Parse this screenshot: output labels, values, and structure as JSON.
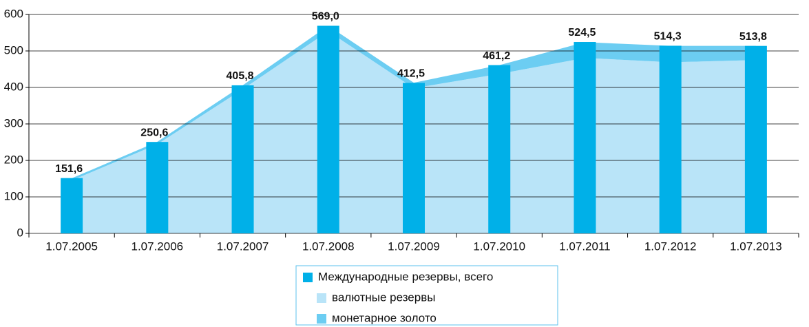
{
  "chart_data": {
    "type": "bar",
    "categories": [
      "1.07.2005",
      "1.07.2006",
      "1.07.2007",
      "1.07.2008",
      "1.07.2009",
      "1.07.2010",
      "1.07.2011",
      "1.07.2012",
      "1.07.2013"
    ],
    "series": [
      {
        "name": "Международные резервы, всего",
        "type": "bar",
        "color": "#00b0e8",
        "values": [
          151.6,
          250.6,
          405.8,
          569.0,
          412.5,
          461.2,
          524.5,
          514.3,
          513.8
        ],
        "value_labels": [
          "151,6",
          "250,6",
          "405,8",
          "569,0",
          "412,5",
          "461,2",
          "524,5",
          "514,3",
          "513,8"
        ]
      },
      {
        "name": "валютные резервы",
        "type": "area",
        "color": "#b9e4f8",
        "values": [
          145,
          244,
          395,
          554,
          398,
          437,
          481,
          469,
          475
        ]
      },
      {
        "name": "монетарное золото",
        "type": "area",
        "color": "#6ccdf2",
        "values": [
          6,
          7,
          11,
          15,
          15,
          24,
          43,
          45,
          39
        ]
      }
    ],
    "ylim": [
      0,
      600
    ],
    "yticks": [
      0,
      100,
      200,
      300,
      400,
      500,
      600
    ],
    "grid": true
  }
}
